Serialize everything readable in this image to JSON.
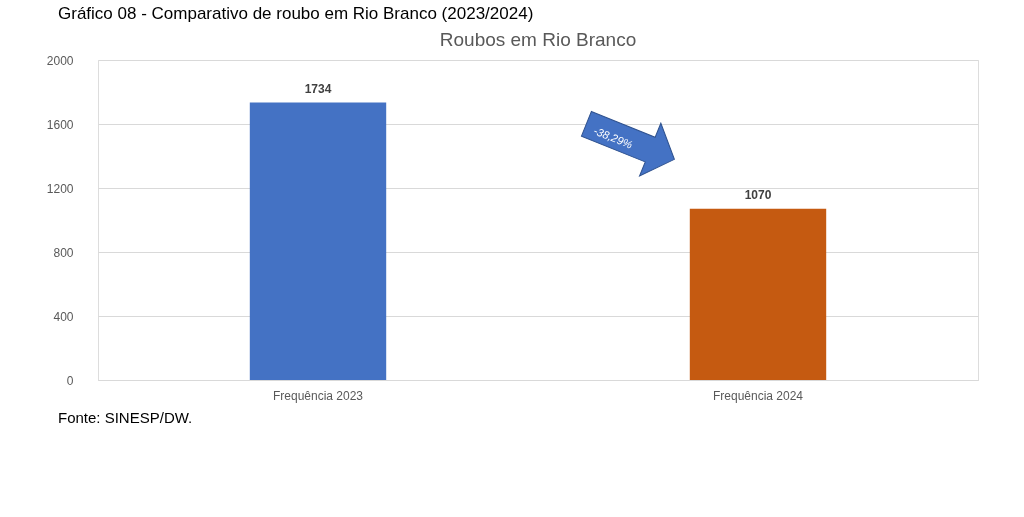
{
  "chart_data": {
    "type": "bar",
    "title": "Gráfico 08 - Comparativo de roubo em Rio Branco (2023/2024)",
    "subtitle": "Roubos em Rio Branco",
    "categories": [
      "Frequência 2023",
      "Frequência 2024"
    ],
    "values": [
      1734,
      1070
    ],
    "colors": [
      "#4472c4",
      "#c55a11"
    ],
    "ylim": [
      0,
      2000
    ],
    "yticks": [
      0,
      400,
      800,
      1200,
      1600,
      2000
    ],
    "grid": "y",
    "data_labels": true,
    "legend": false,
    "annotations": [
      "-38,29%",
      "Fonte: SINESP/DW."
    ]
  }
}
